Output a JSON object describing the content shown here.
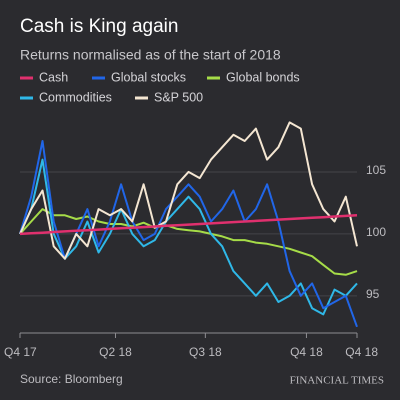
{
  "chart_data": {
    "type": "line",
    "title": "Cash is King again",
    "subtitle": "Returns normalised as of the start of 2018",
    "source": "Source: Bloomberg",
    "publisher": "FINANCIAL TIMES",
    "x": [
      0,
      2,
      4,
      6,
      8,
      10,
      12,
      14,
      16,
      18,
      20,
      22,
      24,
      26,
      28,
      30,
      32,
      34,
      36,
      38,
      40,
      42,
      44,
      46,
      48,
      50,
      52,
      54,
      56,
      58,
      60
    ],
    "xlim": [
      0,
      60
    ],
    "xticks": [
      {
        "value": 0,
        "label": "Q4 17"
      },
      {
        "value": 17,
        "label": "Q2 18"
      },
      {
        "value": 33,
        "label": "Q3 18"
      },
      {
        "value": 51,
        "label": "Q4 18"
      },
      {
        "value": 60,
        "label": "Q4 18"
      }
    ],
    "ylim": [
      92,
      110
    ],
    "yticks": [
      95,
      100,
      105
    ],
    "grid": true,
    "series": [
      {
        "name": "Cash",
        "color": "#e0306e",
        "values": [
          100,
          100.05,
          100.1,
          100.15,
          100.2,
          100.25,
          100.3,
          100.35,
          100.4,
          100.45,
          100.5,
          100.55,
          100.6,
          100.65,
          100.7,
          100.75,
          100.8,
          100.85,
          100.9,
          100.95,
          101,
          101.05,
          101.1,
          101.15,
          101.2,
          101.25,
          101.3,
          101.35,
          101.4,
          101.45,
          101.5
        ]
      },
      {
        "name": "Global stocks",
        "color": "#2166e8",
        "values": [
          100,
          103,
          107.5,
          101,
          98,
          100,
          102,
          99,
          101,
          104,
          101,
          99.5,
          100,
          102,
          103,
          104,
          103,
          101,
          102,
          103.5,
          101,
          102,
          104,
          101,
          97,
          95,
          96,
          94,
          94.5,
          95,
          92.5
        ]
      },
      {
        "name": "Global bonds",
        "color": "#a6dc48",
        "values": [
          100,
          101,
          102,
          101.5,
          101.5,
          101.2,
          101.4,
          101,
          100.8,
          100.8,
          100.6,
          100.9,
          100.5,
          100.7,
          100.4,
          100.3,
          100.2,
          100,
          99.8,
          99.5,
          99.5,
          99.3,
          99.2,
          99,
          98.8,
          98.5,
          98.2,
          97.5,
          96.8,
          96.7,
          97
        ]
      },
      {
        "name": "Commodities",
        "color": "#2fb8e8",
        "values": [
          100,
          102,
          106,
          100,
          98,
          99,
          101,
          98.5,
          100,
          102,
          100,
          99,
          99.5,
          101,
          102,
          103,
          102,
          100,
          99,
          97,
          96,
          95,
          96,
          94.5,
          95,
          96,
          94,
          93.5,
          95.5,
          95,
          96
        ]
      },
      {
        "name": "S&P 500",
        "color": "#f4e6d2",
        "values": [
          100,
          102,
          103.5,
          99,
          98,
          100,
          99,
          102,
          101.5,
          102,
          101,
          104,
          100.5,
          101,
          104,
          105,
          104.5,
          106,
          107,
          108,
          107.5,
          108.5,
          106,
          107,
          109,
          108.5,
          104,
          102,
          101,
          103,
          99
        ]
      }
    ]
  }
}
